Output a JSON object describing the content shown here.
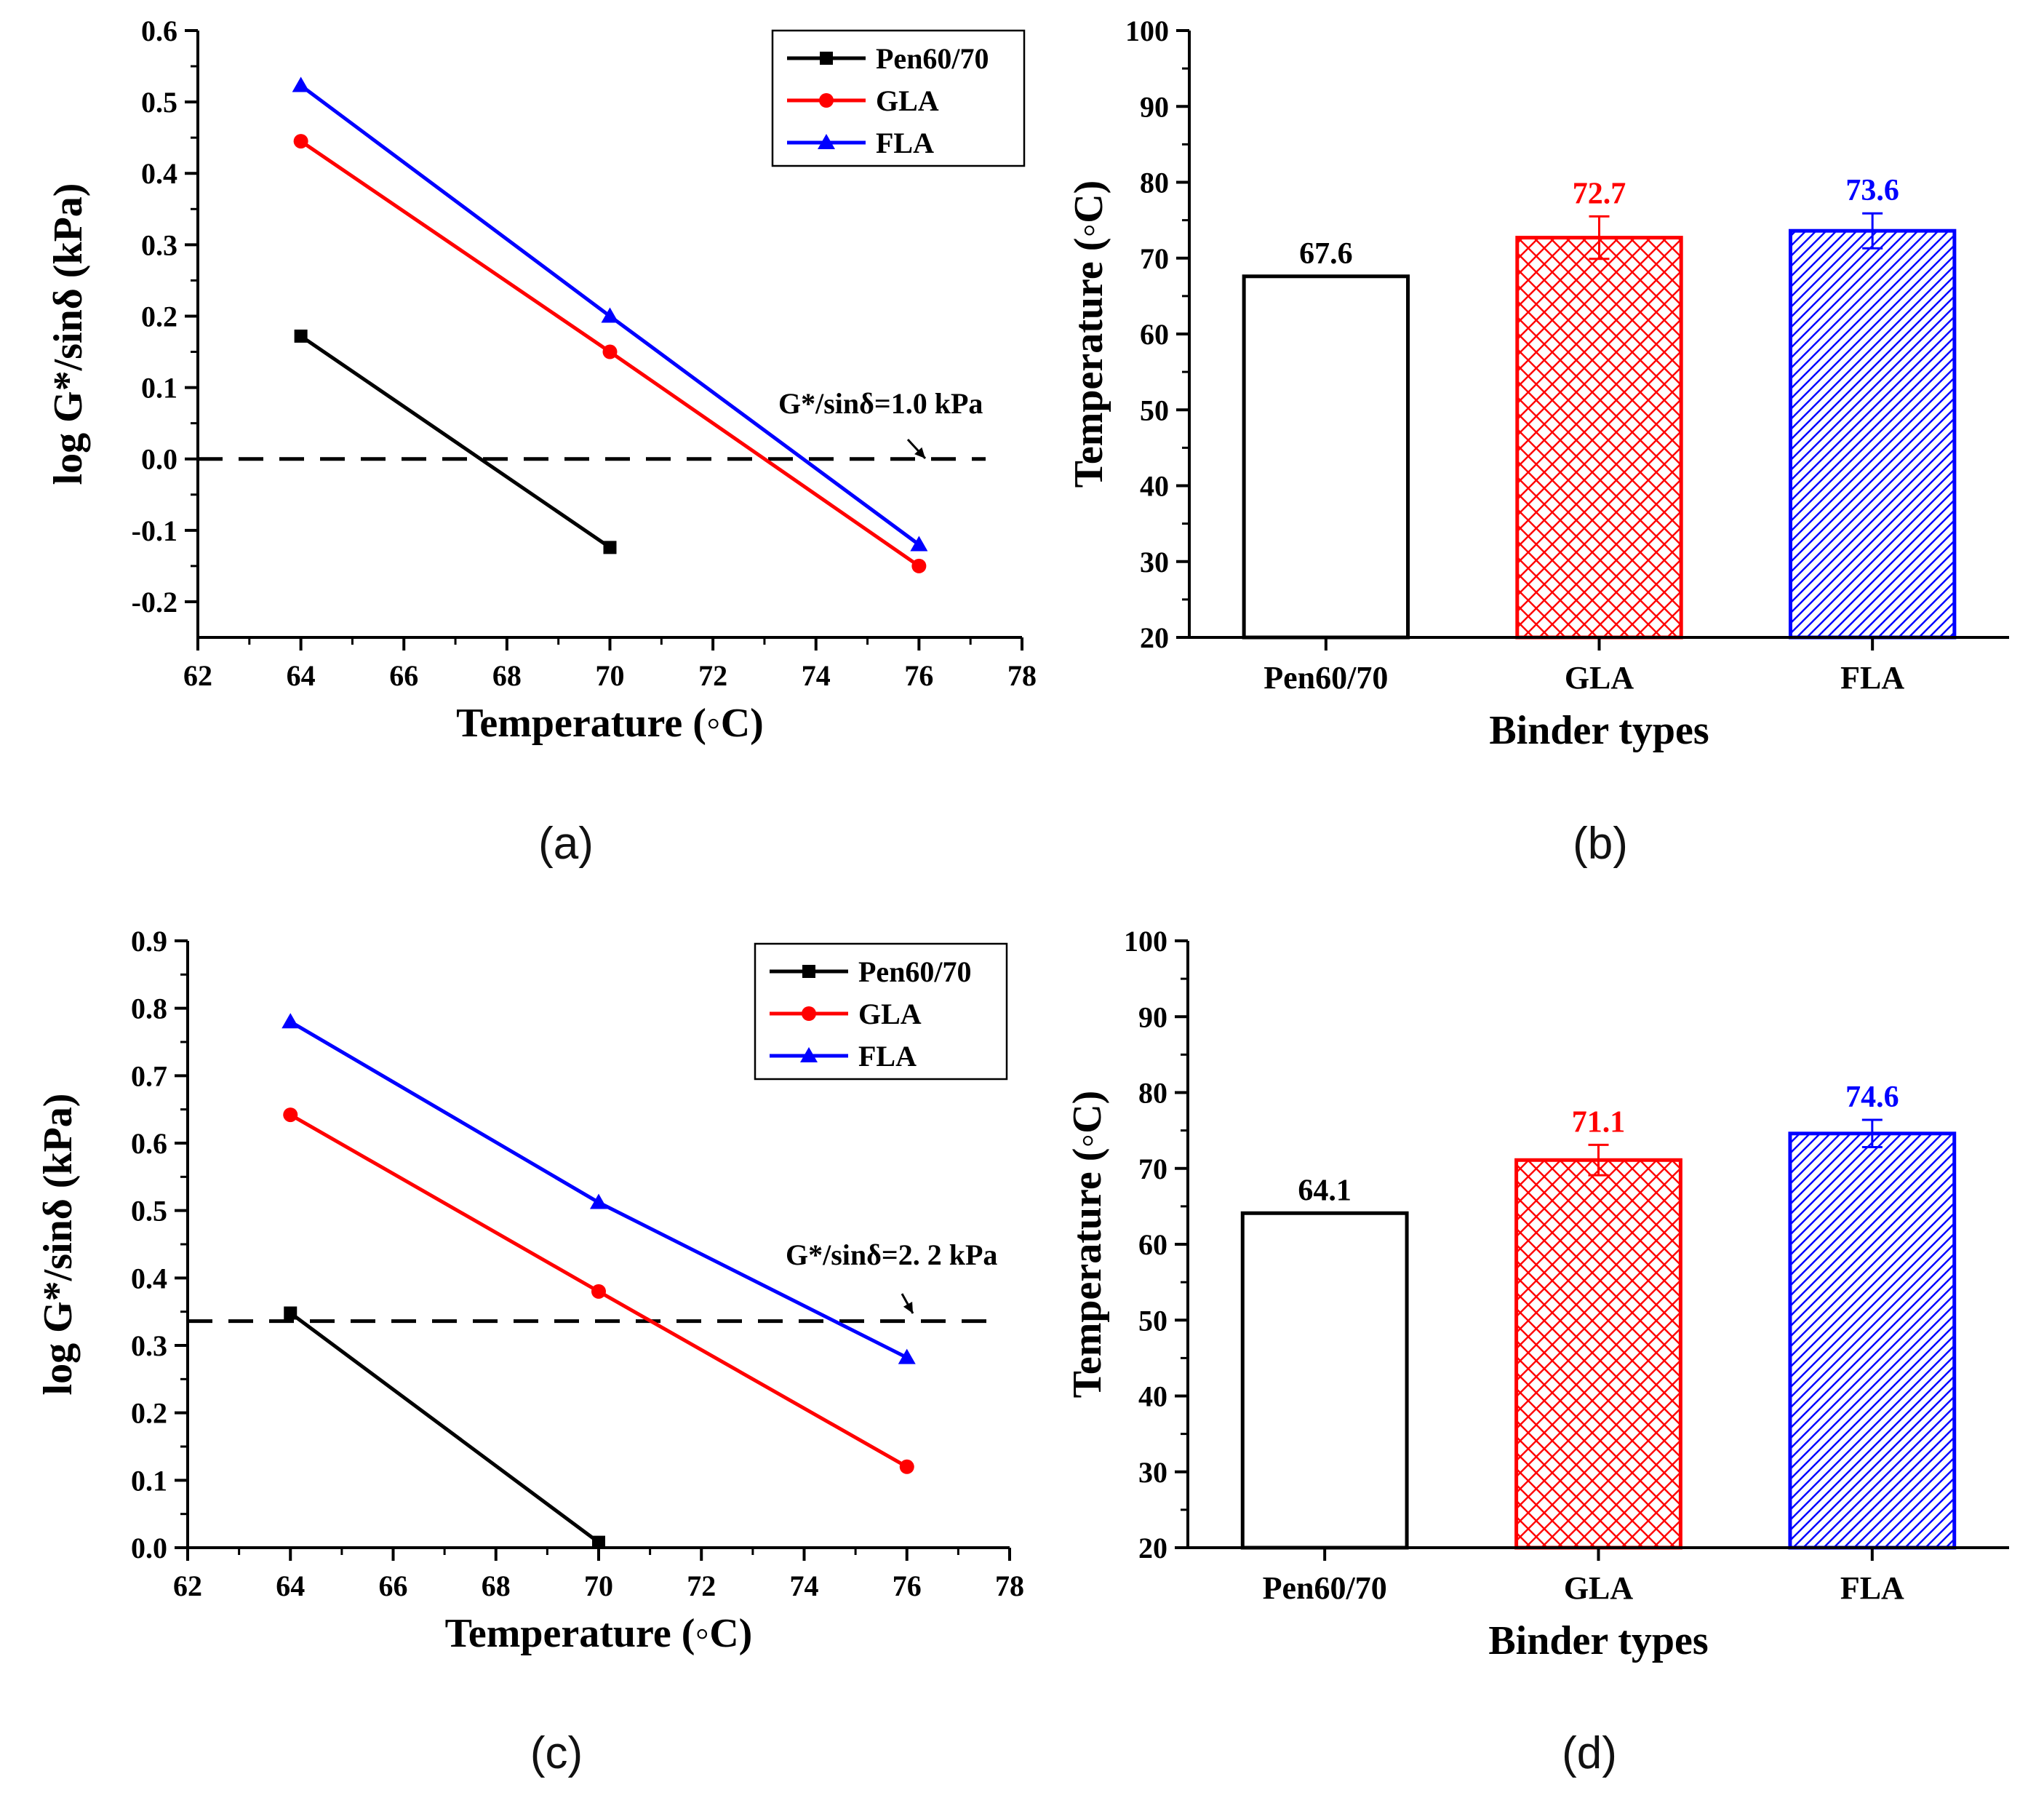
{
  "figure": {
    "panel_labels": [
      "(a)",
      "(b)",
      "(c)",
      "(d)"
    ]
  },
  "chart_data": [
    {
      "id": "a",
      "type": "line",
      "title": "",
      "xlabel": "Temperature (◦C)",
      "ylabel": "log G*/sinδ (kPa)",
      "xlim": [
        62,
        78
      ],
      "ylim": [
        -0.25,
        0.6
      ],
      "xticks": [
        62,
        64,
        66,
        68,
        70,
        72,
        74,
        76,
        78
      ],
      "yticks": [
        -0.2,
        -0.1,
        0.0,
        0.1,
        0.2,
        0.3,
        0.4,
        0.5,
        0.6
      ],
      "ytick_labels": [
        "-0.2",
        "-0.1",
        "0.0",
        "0.1",
        "0.2",
        "0.3",
        "0.4",
        "0.5",
        "0.6"
      ],
      "grid": false,
      "legend_position": "top-right",
      "series": [
        {
          "name": "Pen60/70",
          "color": "#000000",
          "marker": "square",
          "x": [
            64,
            70
          ],
          "y": [
            0.172,
            -0.124
          ]
        },
        {
          "name": "GLA",
          "color": "#ff0000",
          "marker": "circle",
          "x": [
            64,
            70,
            76
          ],
          "y": [
            0.445,
            0.15,
            -0.15
          ]
        },
        {
          "name": "FLA",
          "color": "#0000ff",
          "marker": "triangle",
          "x": [
            64,
            70,
            76
          ],
          "y": [
            0.523,
            0.2,
            -0.12
          ]
        }
      ],
      "reference_line": {
        "y": 0.0,
        "label": "G*/sinδ=1.0 kPa"
      }
    },
    {
      "id": "b",
      "type": "bar",
      "title": "",
      "xlabel": "Binder types",
      "ylabel": "Temperature (◦C)",
      "ylim": [
        20,
        100
      ],
      "yticks": [
        20,
        30,
        40,
        50,
        60,
        70,
        80,
        90,
        100
      ],
      "categories": [
        "Pen60/70",
        "GLA",
        "FLA"
      ],
      "values": [
        67.6,
        72.7,
        73.6
      ],
      "value_labels": [
        "67.6",
        "72.7",
        "73.6"
      ],
      "errors": [
        0,
        2.8,
        2.3
      ],
      "colors": [
        "#000000",
        "#ff0000",
        "#0000ff"
      ],
      "fills": [
        "none",
        "crosshatch",
        "diagonal"
      ]
    },
    {
      "id": "c",
      "type": "line",
      "title": "",
      "xlabel": "Temperature (◦C)",
      "ylabel": "log G*/sinδ (kPa)",
      "xlim": [
        62,
        78
      ],
      "ylim": [
        0.0,
        0.9
      ],
      "xticks": [
        62,
        64,
        66,
        68,
        70,
        72,
        74,
        76,
        78
      ],
      "yticks": [
        0.0,
        0.1,
        0.2,
        0.3,
        0.4,
        0.5,
        0.6,
        0.7,
        0.8,
        0.9
      ],
      "ytick_labels": [
        "0.0",
        "0.1",
        "0.2",
        "0.3",
        "0.4",
        "0.5",
        "0.6",
        "0.7",
        "0.8",
        "0.9"
      ],
      "grid": false,
      "legend_position": "top-right",
      "series": [
        {
          "name": "Pen60/70",
          "color": "#000000",
          "marker": "square",
          "x": [
            64,
            70
          ],
          "y": [
            0.348,
            0.008
          ]
        },
        {
          "name": "GLA",
          "color": "#ff0000",
          "marker": "circle",
          "x": [
            64,
            70,
            76
          ],
          "y": [
            0.642,
            0.38,
            0.12
          ]
        },
        {
          "name": "FLA",
          "color": "#0000ff",
          "marker": "triangle",
          "x": [
            64,
            70,
            76
          ],
          "y": [
            0.78,
            0.512,
            0.282
          ]
        }
      ],
      "reference_line": {
        "y": 0.336,
        "label": "G*/sinδ=2. 2 kPa"
      }
    },
    {
      "id": "d",
      "type": "bar",
      "title": "",
      "xlabel": "Binder types",
      "ylabel": "Temperature (◦C)",
      "ylim": [
        20,
        100
      ],
      "yticks": [
        20,
        30,
        40,
        50,
        60,
        70,
        80,
        90,
        100
      ],
      "categories": [
        "Pen60/70",
        "GLA",
        "FLA"
      ],
      "values": [
        64.1,
        71.1,
        74.6
      ],
      "value_labels": [
        "64.1",
        "71.1",
        "74.6"
      ],
      "errors": [
        0,
        2.0,
        1.8
      ],
      "colors": [
        "#000000",
        "#ff0000",
        "#0000ff"
      ],
      "fills": [
        "none",
        "crosshatch",
        "diagonal"
      ]
    }
  ]
}
